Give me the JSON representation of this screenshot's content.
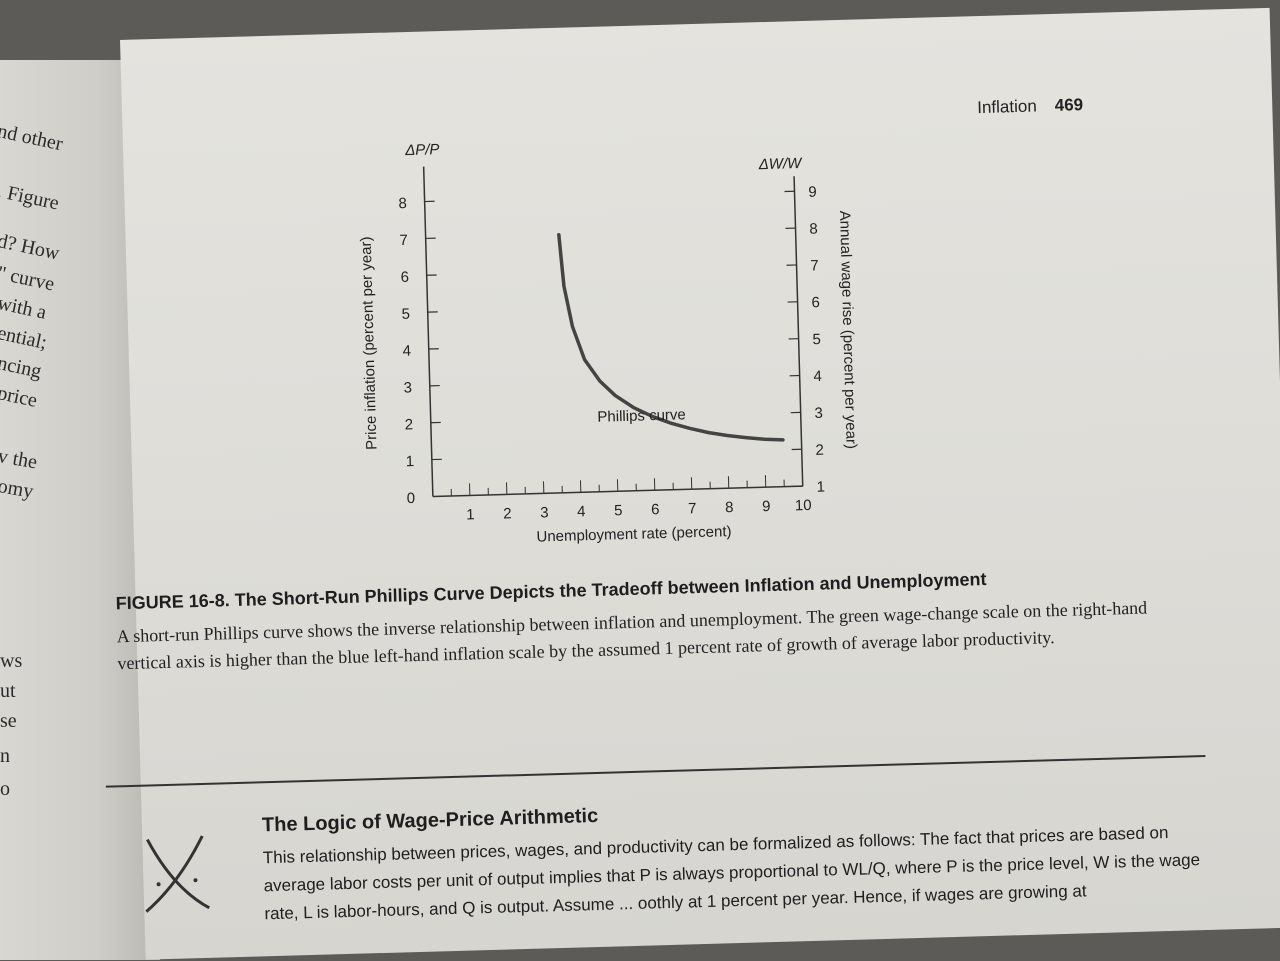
{
  "left_page": {
    "fragments": [
      "nd other",
      ". Figure",
      "d? How",
      "\" curve",
      "with a",
      "ential;",
      "ncing",
      "price",
      "v the",
      "omy",
      "ws",
      "ut",
      "se",
      "n",
      "o"
    ]
  },
  "running_head": {
    "section": "Inflation",
    "page_number": "469"
  },
  "chart_data": {
    "type": "line",
    "left_axis_symbol": "ΔP/P",
    "right_axis_symbol": "ΔW/W",
    "ylabel": "Price inflation (percent per year)",
    "ylabel_right": "Annual wage rise (percent per year)",
    "xlabel": "Unemployment rate (percent)",
    "xlim": [
      0,
      10
    ],
    "ylim": [
      0,
      8
    ],
    "ylim_right": [
      1,
      9
    ],
    "x_ticks": [
      1,
      2,
      3,
      4,
      5,
      6,
      7,
      8,
      9,
      10
    ],
    "y_ticks": [
      0,
      1,
      2,
      3,
      4,
      5,
      6,
      7,
      8
    ],
    "y_ticks_right": [
      1,
      2,
      3,
      4,
      5,
      6,
      7,
      8,
      9
    ],
    "series": [
      {
        "name": "Phillips curve",
        "x": [
          3.6,
          3.7,
          3.9,
          4.2,
          4.6,
          5.0,
          5.5,
          6.0,
          6.5,
          7.0,
          7.5,
          8.0,
          8.5,
          9.0,
          9.5
        ],
        "y": [
          7.0,
          5.6,
          4.5,
          3.6,
          3.0,
          2.6,
          2.25,
          2.0,
          1.8,
          1.65,
          1.52,
          1.43,
          1.36,
          1.3,
          1.27
        ]
      }
    ]
  },
  "caption": {
    "title": "FIGURE 16-8. The Short-Run Phillips Curve Depicts the Tradeoff between Inflation and Unemployment",
    "body": "A short-run Phillips curve shows the inverse relationship between inflation and unemployment. The green wage-change scale on the right-hand vertical axis is higher than the blue left-hand inflation scale by the assumed 1 percent rate of growth of average labor productivity."
  },
  "box": {
    "title": "The Logic of Wage-Price Arithmetic",
    "body": "This relationship between prices, wages, and productivity can be formalized as follows: The fact that prices are based on average labor costs per unit of output implies that P is always proportional to WL/Q, where P is the price level, W is the wage rate, L is labor-hours, and Q is output. Assume ... oothly at 1 percent per year. Hence, if wages are growing at"
  }
}
